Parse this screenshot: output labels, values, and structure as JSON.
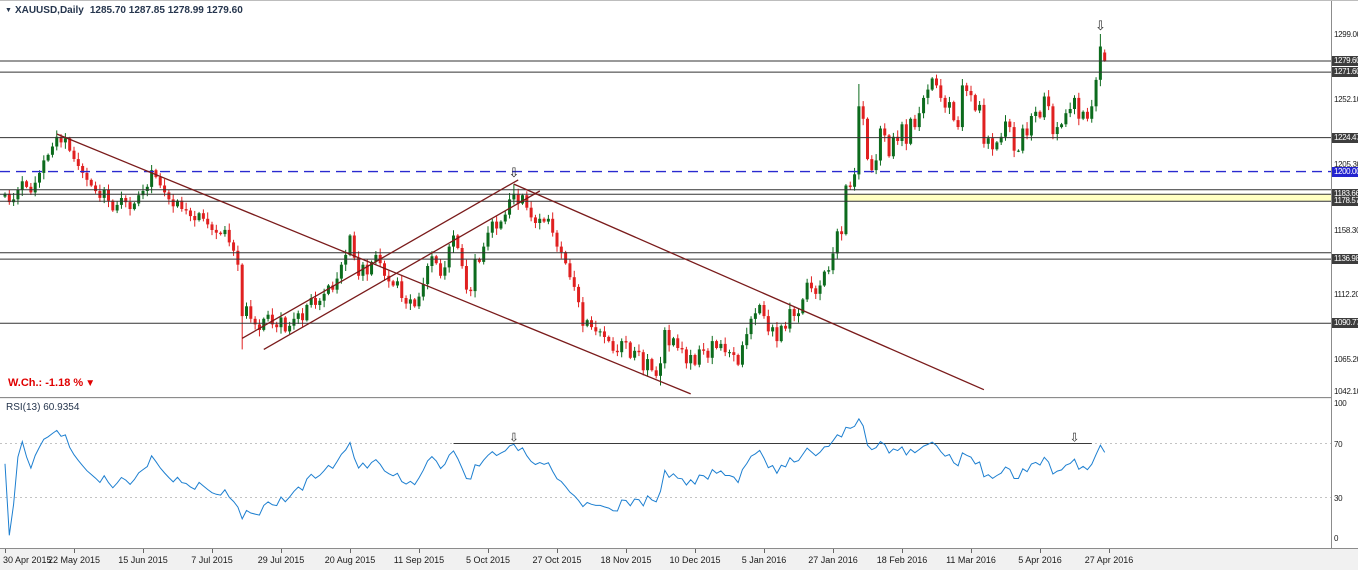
{
  "header": {
    "dropdown_icon": "▼",
    "symbol_label": "XAUUSD,Daily",
    "ohlc_text": "1285.70 1287.85 1278.99 1279.60"
  },
  "main_chart": {
    "weekly_change_text": "W.Ch.: -1.18 %",
    "weekly_change_icon": "▼",
    "weekly_change_color": "#e00000",
    "arrow_glyph": "⇩",
    "levels": [
      {
        "price": 1279.6,
        "label": "1279.60",
        "style": "solid",
        "color": "#333333",
        "badge_bg": "#3d3d3d"
      },
      {
        "price": 1271.6,
        "label": "1271.60",
        "style": "solid",
        "color": "#333333",
        "badge_bg": "#3d3d3d"
      },
      {
        "price": 1224.47,
        "label": "1224.47",
        "style": "solid",
        "color": "#333333",
        "badge_bg": "#3d3d3d"
      },
      {
        "price": 1200.0,
        "label": "1200.00",
        "style": "dashed",
        "color": "#2a2ad0",
        "badge_bg": "#2424cf"
      },
      {
        "price": 1186.9,
        "label": null,
        "style": "solid",
        "color": "#333333",
        "badge_bg": null
      },
      {
        "price": 1183.66,
        "label": "1183.66",
        "style": "solid",
        "color": "#333333",
        "badge_bg": "#3d3d3d"
      },
      {
        "price": 1178.57,
        "label": "1178.57",
        "style": "solid",
        "color": "#333333",
        "badge_bg": "#3d3d3d"
      },
      {
        "price": 1141.5,
        "label": null,
        "style": "solid",
        "color": "#333333",
        "badge_bg": null
      },
      {
        "price": 1136.98,
        "label": "1136.98",
        "style": "solid",
        "color": "#333333",
        "badge_bg": "#3d3d3d"
      },
      {
        "price": 1090.77,
        "label": "1090.77",
        "style": "solid",
        "color": "#333333",
        "badge_bg": "#3d3d3d"
      }
    ],
    "plain_axis_labels": [
      "1299.00",
      "1252.10",
      "1205.30",
      "1158.30",
      "1112.20",
      "1065.20",
      "1042.10"
    ],
    "highlight_zone": {
      "from_index": 195,
      "price_top": 1183.66,
      "price_bottom": 1178.57,
      "color": "#ffffc2"
    },
    "trendlines": [
      {
        "from_index": 12,
        "from_price": 1227,
        "to_index": 159,
        "to_price": 1040
      },
      {
        "from_index": 118,
        "from_price": 1191,
        "to_index": 227,
        "to_price": 1043
      },
      {
        "from_index": 55,
        "from_price": 1080,
        "to_index": 119,
        "to_price": 1194
      },
      {
        "from_index": 60,
        "from_price": 1072,
        "to_index": 124,
        "to_price": 1186
      }
    ],
    "trendline_color": "#7a1b1b",
    "arrows": [
      {
        "index": 118,
        "price": 1196
      },
      {
        "index": 254,
        "price": 1302
      }
    ]
  },
  "chart_data": {
    "type": "candlestick",
    "title": "XAUUSD, Daily",
    "bull_color": "#0c6b1d",
    "bear_color": "#e02020",
    "ylim": [
      1042.1,
      1299.0
    ],
    "last_bar": {
      "open": 1285.7,
      "high": 1287.85,
      "low": 1278.99,
      "close": 1279.6
    },
    "first_open": 1182,
    "closes": [
      1184,
      1178,
      1180,
      1187,
      1193,
      1189,
      1185,
      1192,
      1199,
      1208,
      1212,
      1218,
      1225,
      1221,
      1224,
      1215,
      1209,
      1204,
      1199,
      1194,
      1190,
      1186,
      1181,
      1187,
      1179,
      1172,
      1176,
      1181,
      1178,
      1173,
      1177,
      1183,
      1186,
      1189,
      1201,
      1196,
      1190,
      1185,
      1180,
      1175,
      1179,
      1173,
      1172,
      1168,
      1165,
      1170,
      1166,
      1162,
      1158,
      1156,
      1155,
      1158,
      1149,
      1143,
      1133,
      1096,
      1103,
      1094,
      1090,
      1086,
      1094,
      1097,
      1090,
      1088,
      1095,
      1085,
      1089,
      1094,
      1098,
      1093,
      1104,
      1109,
      1104,
      1107,
      1112,
      1118,
      1115,
      1123,
      1133,
      1140,
      1154,
      1138,
      1125,
      1133,
      1126,
      1135,
      1140,
      1134,
      1125,
      1121,
      1118,
      1121,
      1109,
      1105,
      1108,
      1103,
      1110,
      1119,
      1132,
      1139,
      1134,
      1125,
      1131,
      1146,
      1154,
      1145,
      1132,
      1115,
      1114,
      1137,
      1135,
      1146,
      1156,
      1164,
      1159,
      1164,
      1169,
      1180,
      1184,
      1177,
      1183,
      1174,
      1167,
      1163,
      1166,
      1164,
      1166,
      1156,
      1146,
      1142,
      1134,
      1124,
      1117,
      1106,
      1089,
      1093,
      1088,
      1085,
      1085,
      1081,
      1078,
      1071,
      1070,
      1078,
      1077,
      1066,
      1071,
      1070,
      1057,
      1065,
      1057,
      1053,
      1062,
      1086,
      1075,
      1080,
      1073,
      1072,
      1062,
      1068,
      1061,
      1072,
      1071,
      1066,
      1078,
      1073,
      1076,
      1070,
      1070,
      1068,
      1061,
      1075,
      1083,
      1094,
      1098,
      1104,
      1096,
      1085,
      1088,
      1078,
      1089,
      1087,
      1101,
      1096,
      1098,
      1108,
      1120,
      1116,
      1112,
      1118,
      1128,
      1129,
      1141,
      1157,
      1155,
      1190,
      1189,
      1198,
      1247,
      1238,
      1209,
      1201,
      1208,
      1231,
      1226,
      1211,
      1225,
      1222,
      1234,
      1220,
      1238,
      1232,
      1242,
      1253,
      1259,
      1267,
      1262,
      1253,
      1246,
      1250,
      1237,
      1232,
      1262,
      1258,
      1255,
      1244,
      1248,
      1220,
      1224,
      1216,
      1221,
      1225,
      1236,
      1232,
      1215,
      1215,
      1231,
      1226,
      1240,
      1243,
      1239,
      1254,
      1247,
      1227,
      1232,
      1234,
      1242,
      1245,
      1253,
      1238,
      1243,
      1238,
      1247,
      1266,
      1290,
      1279.6
    ],
    "wick_overrides": {
      "55": {
        "low": 1072
      },
      "118": {
        "high": 1191
      },
      "152": {
        "low": 1046
      },
      "198": {
        "high": 1263
      },
      "254": {
        "high": 1299
      },
      "255": {
        "open": 1285.7,
        "high": 1287.85,
        "low": 1278.99
      }
    },
    "x_axis_labels": [
      "30 Apr 2015",
      "22 May 2015",
      "15 Jun 2015",
      "7 Jul 2015",
      "29 Jul 2015",
      "20 Aug 2015",
      "11 Sep 2015",
      "5 Oct 2015",
      "27 Oct 2015",
      "18 Nov 2015",
      "10 Dec 2015",
      "5 Jan 2016",
      "27 Jan 2016",
      "18 Feb 2016",
      "11 Mar 2016",
      "5 Apr 2016",
      "27 Apr 2016"
    ],
    "label_every_n_candles": 16
  },
  "rsi_panel": {
    "label": "RSI(13)",
    "value": "60.9354",
    "line_color": "#1d7fd0",
    "scale_labels": [
      "100",
      "70",
      "30",
      "0"
    ],
    "scale_values": [
      100,
      70,
      30,
      0
    ],
    "dotted_levels": [
      70,
      30
    ],
    "drawn_line": {
      "level": 70,
      "from_index": 104,
      "to_index": 252
    },
    "arrows": [
      {
        "index": 118
      },
      {
        "index": 248
      }
    ],
    "arrow_glyph": "⇩"
  }
}
